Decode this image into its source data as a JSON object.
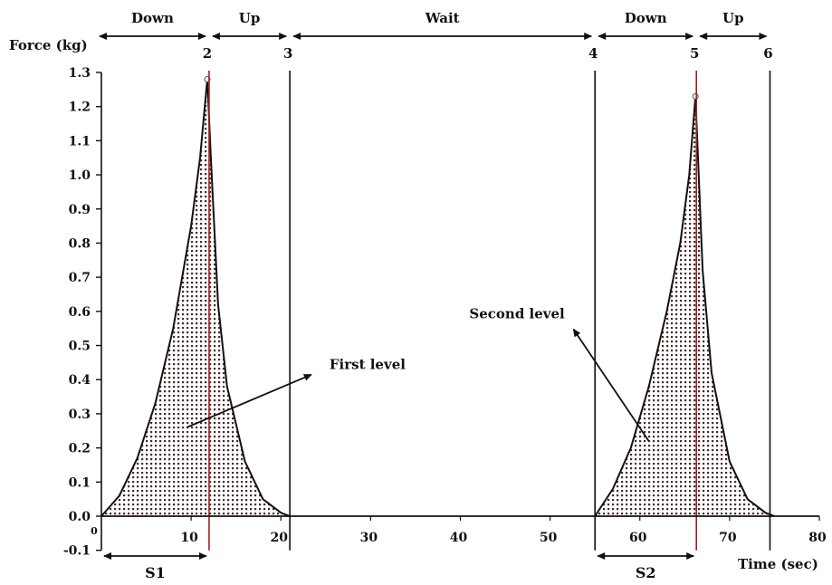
{
  "chart_data": {
    "type": "area",
    "ylabel": "Force (kg)",
    "xlabel": "Time (sec)",
    "xlim": [
      0,
      80
    ],
    "ylim": [
      -0.1,
      1.3
    ],
    "x_ticks": [
      10,
      20,
      30,
      40,
      50,
      60,
      70,
      80
    ],
    "x_zero_label": "0",
    "y_ticks": [
      -0.1,
      0.0,
      0.1,
      0.2,
      0.3,
      0.4,
      0.5,
      0.6,
      0.7,
      0.8,
      0.9,
      1.0,
      1.1,
      1.2,
      1.3
    ],
    "grid": false,
    "colors": {
      "outline": "#111111",
      "stipple": "#4a2a2a",
      "marker_line": "#9b2226",
      "phase_line": "#111111"
    },
    "series": [
      {
        "x": [
          0,
          2,
          4,
          6,
          8,
          10,
          11,
          11.8,
          12.2,
          13,
          14,
          16,
          18,
          20,
          21
        ],
        "y": [
          0.0,
          0.06,
          0.17,
          0.33,
          0.55,
          0.85,
          1.05,
          1.28,
          1.05,
          0.62,
          0.38,
          0.16,
          0.05,
          0.01,
          0.0
        ]
      },
      {
        "x": [
          55,
          57,
          59,
          61,
          63,
          64.5,
          65.5,
          66.2,
          67,
          68,
          70,
          72,
          74,
          75
        ],
        "y": [
          0.0,
          0.08,
          0.2,
          0.38,
          0.6,
          0.8,
          1.0,
          1.23,
          0.72,
          0.42,
          0.16,
          0.05,
          0.01,
          0.0
        ]
      }
    ],
    "vertical_markers": [
      {
        "label": "2",
        "x": 12
      },
      {
        "label": "3",
        "x": 21
      },
      {
        "label": "4",
        "x": 55
      },
      {
        "label": "5",
        "x": 66.3
      },
      {
        "label": "6",
        "x": 74.5
      }
    ],
    "phases": [
      {
        "label": "Down",
        "x_start": 0,
        "x_end": 12
      },
      {
        "label": "Up",
        "x_start": 12,
        "x_end": 21
      },
      {
        "label": "Wait",
        "x_start": 21,
        "x_end": 55
      },
      {
        "label": "Down",
        "x_start": 55,
        "x_end": 66.3
      },
      {
        "label": "Up",
        "x_start": 66.3,
        "x_end": 74.5
      }
    ],
    "spans": [
      {
        "label": "S1",
        "x_start": 0,
        "x_end": 12
      },
      {
        "label": "S2",
        "x_start": 55,
        "x_end": 66.3
      }
    ],
    "annotations": [
      {
        "label": "First level",
        "label_x": 24,
        "label_y": 0.42,
        "target_x": 9.5,
        "target_y": 0.26
      },
      {
        "label": "Second level",
        "label_x": 41,
        "label_y": 0.5,
        "target_x": 61,
        "target_y": 0.22
      }
    ]
  }
}
